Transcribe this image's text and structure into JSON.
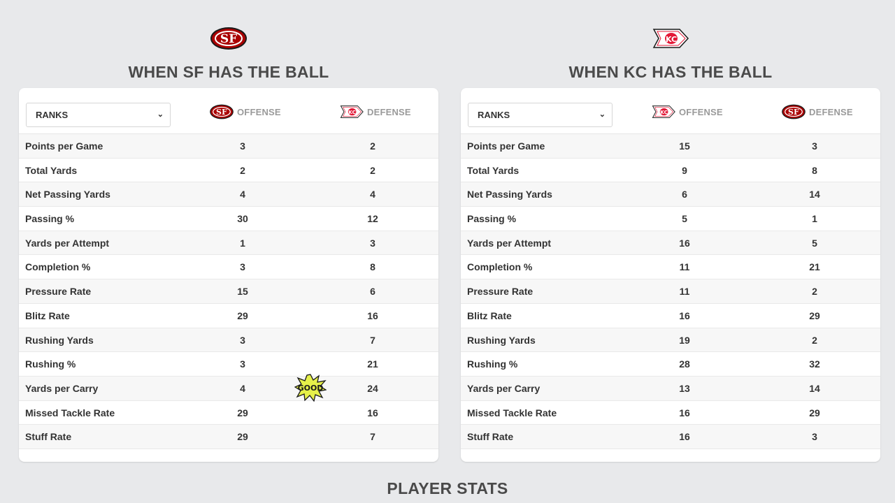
{
  "colors": {
    "sf_red": "#aa0000",
    "sf_gold": "#b3995d",
    "kc_red": "#e31837",
    "page_bg": "#e8e9eb",
    "good_yellow": "#e6f04a"
  },
  "left": {
    "logo_icon": "sf-49ers-logo",
    "title": "WHEN SF HAS THE BALL",
    "select_value": "RANKS",
    "col1_label": "OFFENSE",
    "col1_icon": "sf-49ers-logo",
    "col2_label": "DEFENSE",
    "col2_icon": "kc-chiefs-logo",
    "rows": [
      {
        "label": "Points per Game",
        "v1": "3",
        "v2": "2"
      },
      {
        "label": "Total Yards",
        "v1": "2",
        "v2": "2"
      },
      {
        "label": "Net Passing Yards",
        "v1": "4",
        "v2": "4"
      },
      {
        "label": "Passing %",
        "v1": "30",
        "v2": "12"
      },
      {
        "label": "Yards per Attempt",
        "v1": "1",
        "v2": "3"
      },
      {
        "label": "Completion %",
        "v1": "3",
        "v2": "8"
      },
      {
        "label": "Pressure Rate",
        "v1": "15",
        "v2": "6"
      },
      {
        "label": "Blitz Rate",
        "v1": "29",
        "v2": "16"
      },
      {
        "label": "Rushing Yards",
        "v1": "3",
        "v2": "7"
      },
      {
        "label": "Rushing %",
        "v1": "3",
        "v2": "21"
      },
      {
        "label": "Yards per Carry",
        "v1": "4",
        "v2": "24"
      },
      {
        "label": "Missed Tackle Rate",
        "v1": "29",
        "v2": "16"
      },
      {
        "label": "Stuff Rate",
        "v1": "29",
        "v2": "7"
      }
    ]
  },
  "right": {
    "logo_icon": "kc-chiefs-logo",
    "title": "WHEN KC HAS THE BALL",
    "select_value": "RANKS",
    "col1_label": "OFFENSE",
    "col1_icon": "kc-chiefs-logo",
    "col2_label": "DEFENSE",
    "col2_icon": "sf-49ers-logo",
    "rows": [
      {
        "label": "Points per Game",
        "v1": "15",
        "v2": "3"
      },
      {
        "label": "Total Yards",
        "v1": "9",
        "v2": "8"
      },
      {
        "label": "Net Passing Yards",
        "v1": "6",
        "v2": "14"
      },
      {
        "label": "Passing %",
        "v1": "5",
        "v2": "1"
      },
      {
        "label": "Yards per Attempt",
        "v1": "16",
        "v2": "5"
      },
      {
        "label": "Completion %",
        "v1": "11",
        "v2": "21"
      },
      {
        "label": "Pressure Rate",
        "v1": "11",
        "v2": "2"
      },
      {
        "label": "Blitz Rate",
        "v1": "16",
        "v2": "29"
      },
      {
        "label": "Rushing Yards",
        "v1": "19",
        "v2": "2"
      },
      {
        "label": "Rushing %",
        "v1": "28",
        "v2": "32"
      },
      {
        "label": "Yards per Carry",
        "v1": "13",
        "v2": "14"
      },
      {
        "label": "Missed Tackle Rate",
        "v1": "16",
        "v2": "29"
      },
      {
        "label": "Stuff Rate",
        "v1": "16",
        "v2": "3"
      }
    ]
  },
  "badge": {
    "text": "GOOD",
    "icon": "good-burst-icon"
  },
  "footer": {
    "title": "PLAYER STATS"
  }
}
